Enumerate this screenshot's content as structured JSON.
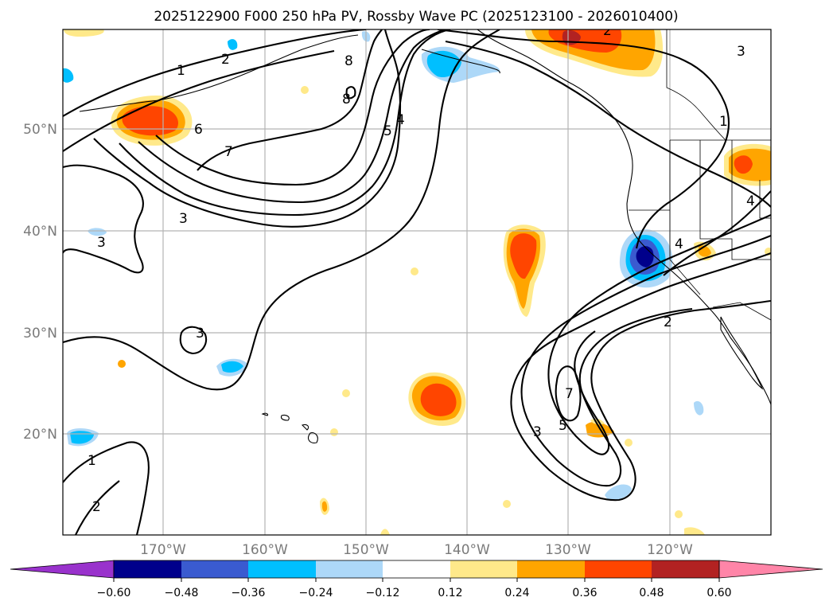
{
  "title": "2025122900 F000 250 hPa PV, Rossby Wave PC (2025123100 - 2026010400)",
  "map": {
    "lat_labels": [
      "50°N",
      "40°N",
      "30°N",
      "20°N"
    ],
    "lon_labels": [
      "170°W",
      "160°W",
      "150°W",
      "140°W",
      "130°W",
      "120°W"
    ]
  },
  "contour_labels": [
    "1",
    "2",
    "3",
    "4",
    "5",
    "6",
    "7",
    "8"
  ],
  "colorbar": {
    "ticks": [
      "−0.60",
      "−0.48",
      "−0.36",
      "−0.24",
      "−0.12",
      "0.12",
      "0.24",
      "0.36",
      "0.48",
      "0.60"
    ],
    "colors": [
      "#9932cc",
      "#00008b",
      "#3a5bd0",
      "#00bfff",
      "#add8f8",
      "#ffffff",
      "#ffe98a",
      "#ffa500",
      "#ff4500",
      "#b22222",
      "#ff85a8"
    ]
  },
  "colors": {
    "neg_weak": "#add8f8",
    "neg_mid": "#00bfff",
    "neg_strong": "#3a5bd0",
    "neg_max": "#00008b",
    "pos_weak": "#ffe98a",
    "pos_mid": "#ffa500",
    "pos_strong": "#ff4500",
    "pos_max": "#b22222"
  }
}
